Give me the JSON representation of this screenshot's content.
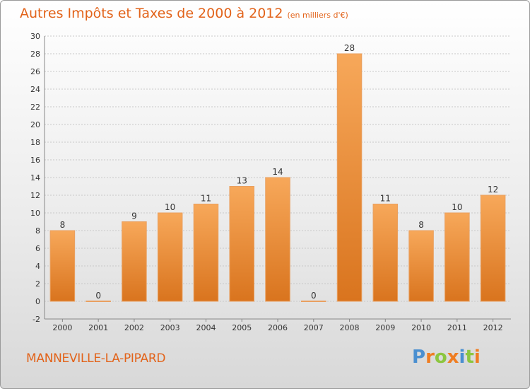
{
  "title": "Autres Impôts et Taxes de 2000 à 2012",
  "unit_note": "(en milliers d'€)",
  "commune": "MANNEVILLE-LA-PIPARD",
  "logo": {
    "text": "Proxiti",
    "letters": [
      {
        "ch": "P",
        "color": "#4a8fd0"
      },
      {
        "ch": "r",
        "color": "#ef7d22"
      },
      {
        "ch": "o",
        "color": "#8cc63f"
      },
      {
        "ch": "x",
        "color": "#ef7d22"
      },
      {
        "ch": "i",
        "color": "#4a8fd0"
      },
      {
        "ch": "t",
        "color": "#8cc63f"
      },
      {
        "ch": "i",
        "color": "#ef7d22"
      }
    ]
  },
  "colors": {
    "bar_top": "#f7a85a",
    "bar_bottom": "#d9741e",
    "accent": "#e2631a"
  },
  "chart_data": {
    "type": "bar",
    "categories": [
      "2000",
      "2001",
      "2002",
      "2003",
      "2004",
      "2005",
      "2006",
      "2007",
      "2008",
      "2009",
      "2010",
      "2011",
      "2012"
    ],
    "values": [
      8,
      0,
      9,
      10,
      11,
      13,
      14,
      0,
      28,
      11,
      8,
      10,
      12
    ],
    "title": "Autres Impôts et Taxes de 2000 à 2012",
    "ylim": [
      -2,
      30
    ],
    "yticks": [
      -2,
      0,
      2,
      4,
      6,
      8,
      10,
      12,
      14,
      16,
      18,
      20,
      22,
      24,
      26,
      28,
      30
    ],
    "grid": true,
    "data_labels": true
  }
}
